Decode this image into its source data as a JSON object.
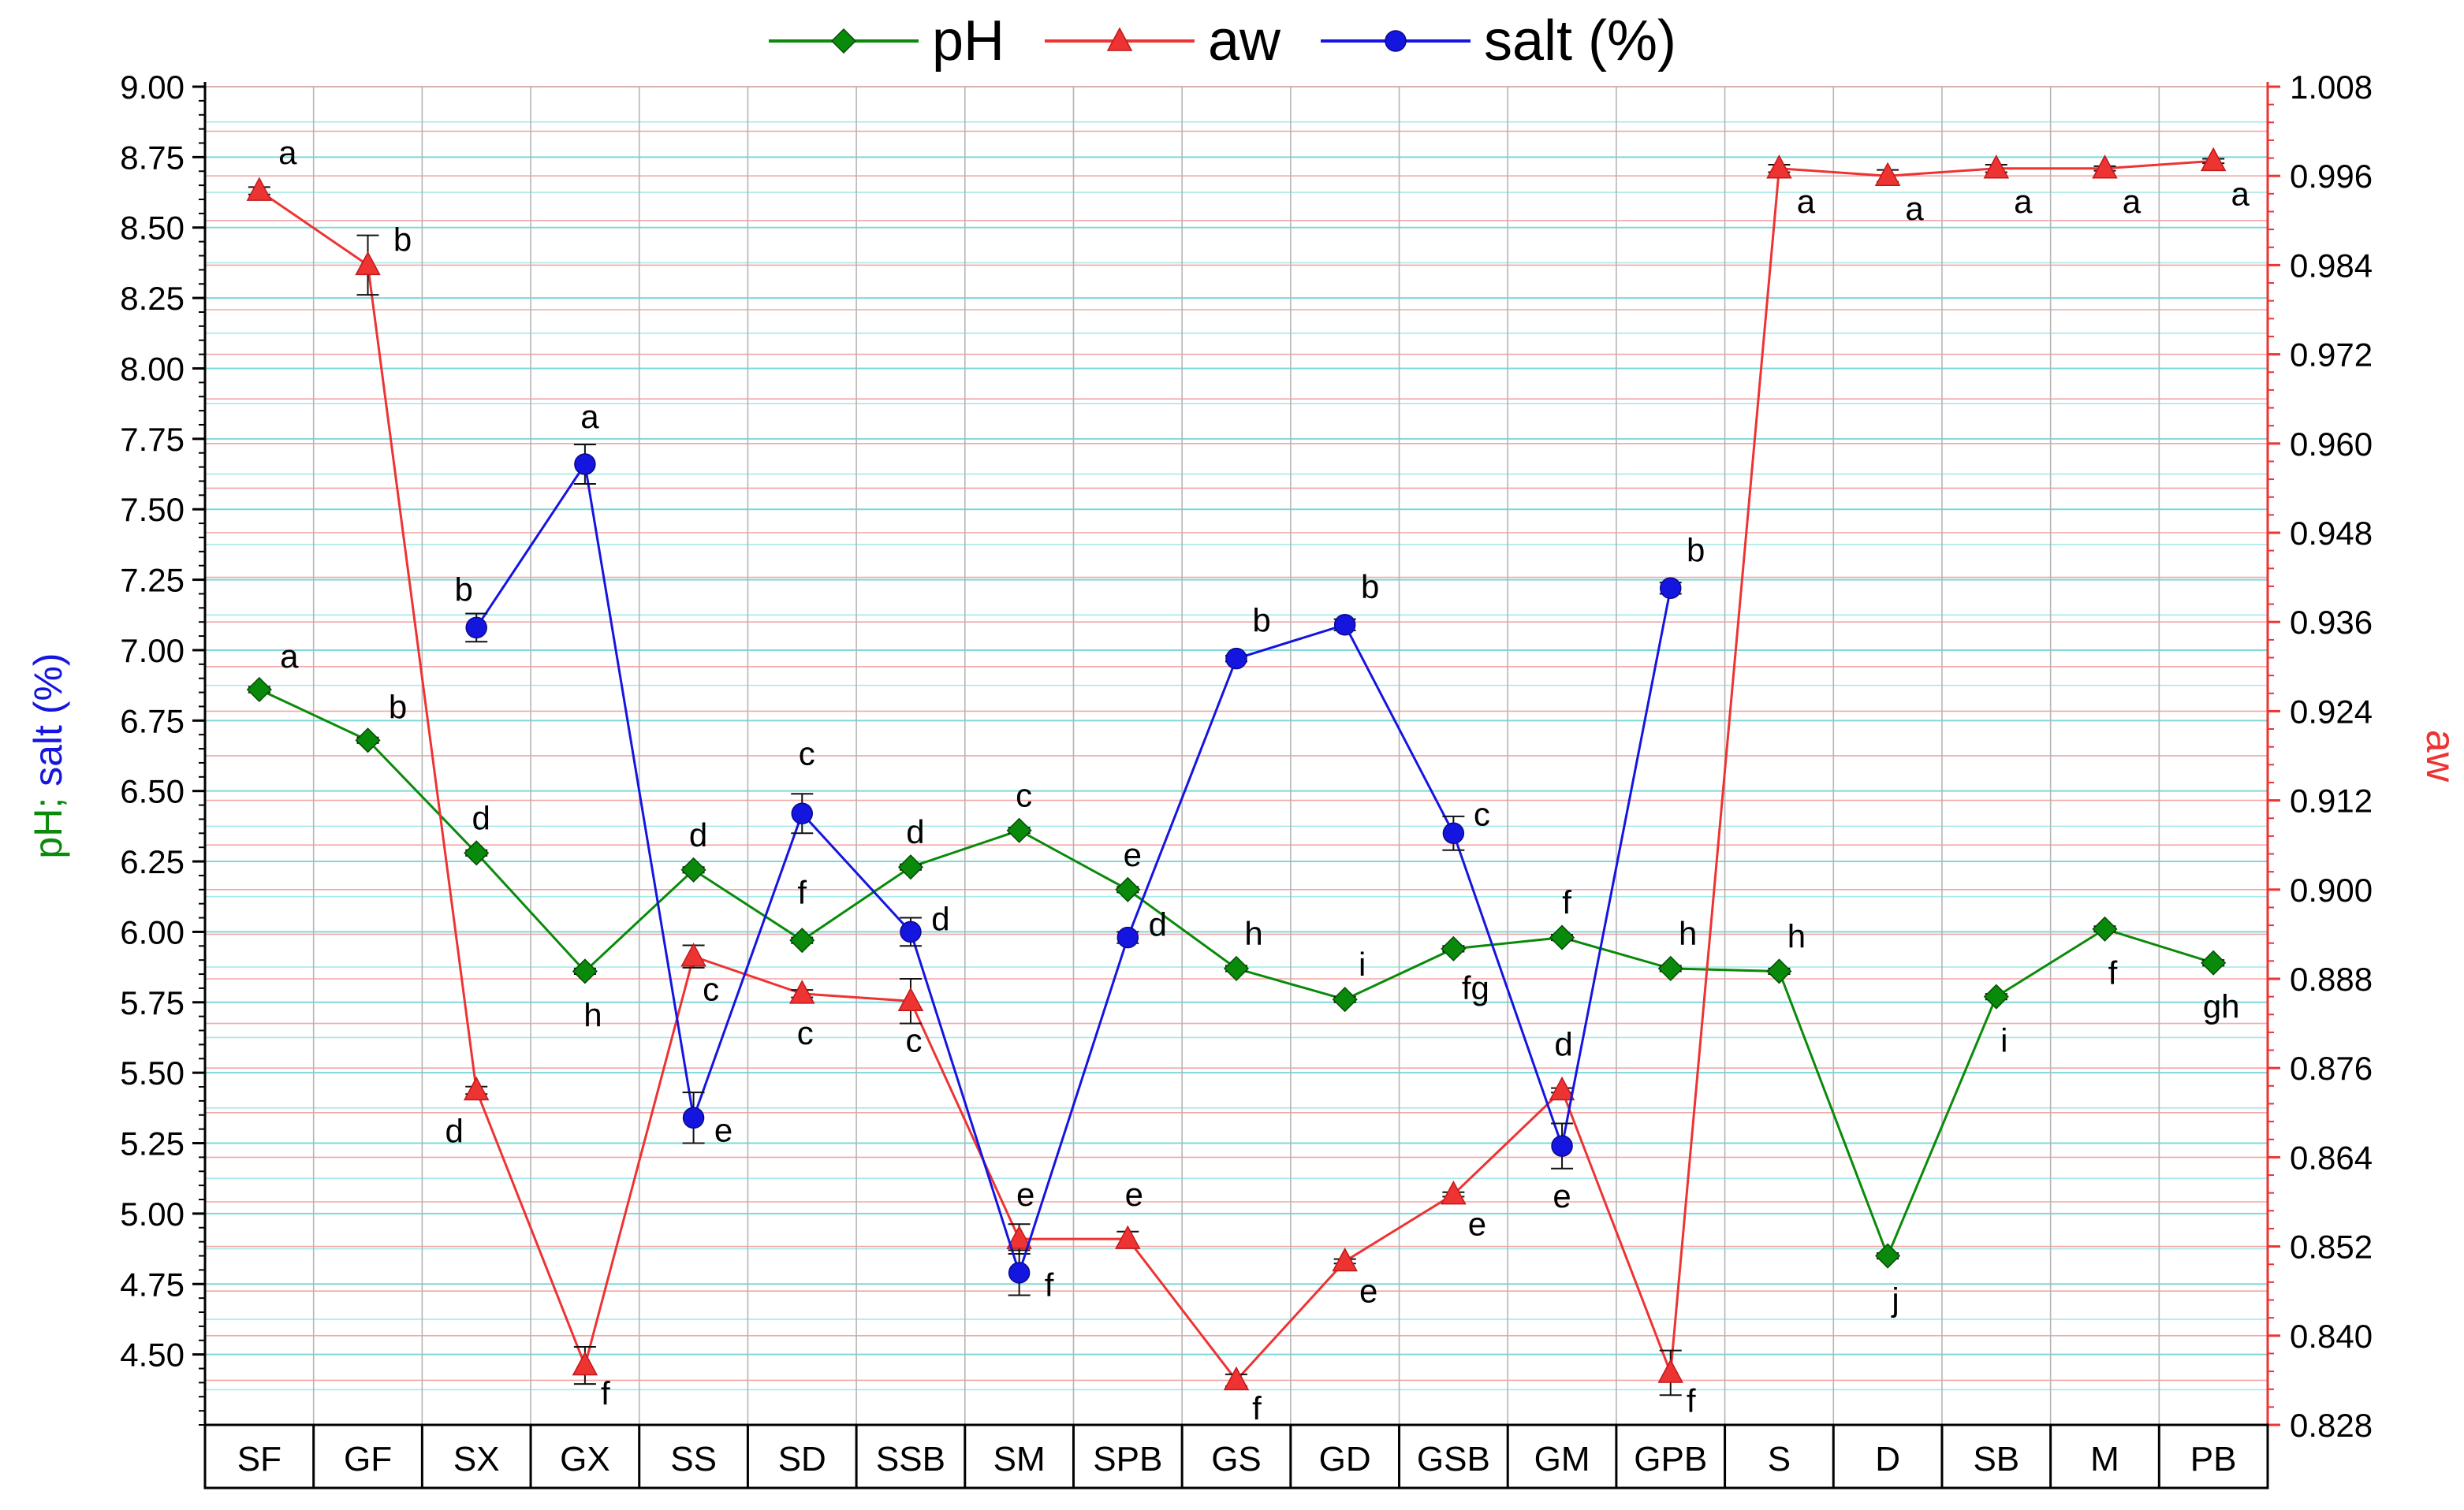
{
  "chart_data": {
    "type": "line",
    "categories": [
      "SF",
      "GF",
      "SX",
      "GX",
      "SS",
      "SD",
      "SSB",
      "SM",
      "SPB",
      "GS",
      "GD",
      "GSB",
      "GM",
      "GPB",
      "S",
      "D",
      "SB",
      "M",
      "PB"
    ],
    "y_left": {
      "label_parts": [
        "pH",
        "; ",
        "salt (%)"
      ],
      "ylim": [
        4.25,
        9.0
      ],
      "ticks": [
        "4.50",
        "4.75",
        "5.00",
        "5.25",
        "5.50",
        "5.75",
        "6.00",
        "6.25",
        "6.50",
        "6.75",
        "7.00",
        "7.25",
        "7.50",
        "7.75",
        "8.00",
        "8.25",
        "8.50",
        "8.75",
        "9.00"
      ]
    },
    "y_right": {
      "label": "aw",
      "ylim": [
        0.828,
        1.008
      ],
      "ticks": [
        "0.828",
        "0.840",
        "0.852",
        "0.864",
        "0.876",
        "0.888",
        "0.900",
        "0.912",
        "0.924",
        "0.936",
        "0.948",
        "0.960",
        "0.972",
        "0.984",
        "0.996",
        "1.008"
      ]
    },
    "grid": true,
    "legend_position": "top-center",
    "series": [
      {
        "name": "pH",
        "axis": "left",
        "color": "#0a8a0a",
        "marker": "diamond",
        "values": [
          6.86,
          6.68,
          6.28,
          5.86,
          6.22,
          5.97,
          6.23,
          6.36,
          6.15,
          5.87,
          5.76,
          5.94,
          5.98,
          5.87,
          5.86,
          4.85,
          5.77,
          6.01,
          5.89
        ],
        "errors": [
          0.01,
          0.01,
          0.01,
          0.01,
          0.01,
          0.01,
          0.01,
          0.01,
          0.01,
          0.01,
          0.01,
          0.01,
          0.01,
          0.01,
          0.01,
          0.01,
          0.01,
          0.01,
          0.01
        ],
        "letters": [
          "a",
          "b",
          "d",
          "h",
          "d",
          "f",
          "d",
          "c",
          "e",
          "h",
          "i",
          "fg",
          "f",
          "h",
          "h",
          "j",
          "i",
          "f",
          "gh"
        ]
      },
      {
        "name": "aw",
        "axis": "right",
        "color": "#ee3333",
        "marker": "triangle",
        "values": [
          0.994,
          0.984,
          0.873,
          0.836,
          0.891,
          0.886,
          0.885,
          0.853,
          0.853,
          0.834,
          0.85,
          0.859,
          0.873,
          0.835,
          0.997,
          0.996,
          0.997,
          0.997,
          0.998
        ],
        "errors": [
          0.0005,
          0.004,
          0.0005,
          0.0025,
          0.0015,
          0.0005,
          0.003,
          0.002,
          0.001,
          0.0008,
          0.0003,
          0.0003,
          0.0003,
          0.003,
          0.0005,
          0.0008,
          0.0005,
          0.0003,
          0.0003
        ],
        "letters": [
          "a",
          "b",
          "d",
          "f",
          "c",
          "c",
          "c",
          "e",
          "e",
          "f",
          "e",
          "e",
          "d",
          "f",
          "a",
          "a",
          "a",
          "a",
          "a"
        ]
      },
      {
        "name": "salt (%)",
        "axis": "left",
        "color": "#1515e0",
        "marker": "circle",
        "values": [
          null,
          null,
          7.08,
          7.66,
          5.34,
          6.42,
          6.0,
          4.79,
          5.98,
          6.97,
          7.09,
          6.35,
          5.24,
          7.22,
          null,
          null,
          null,
          null,
          null
        ],
        "errors": [
          0,
          0,
          0.05,
          0.07,
          0.09,
          0.07,
          0.05,
          0.08,
          0.02,
          0.01,
          0.02,
          0.06,
          0.08,
          0.02,
          0,
          0,
          0,
          0,
          0
        ],
        "letters": [
          "",
          "",
          "b",
          "a",
          "e",
          "c",
          "d",
          "f",
          "d",
          "b",
          "b",
          "c",
          "e",
          "b",
          "",
          "",
          "",
          "",
          ""
        ]
      }
    ]
  }
}
